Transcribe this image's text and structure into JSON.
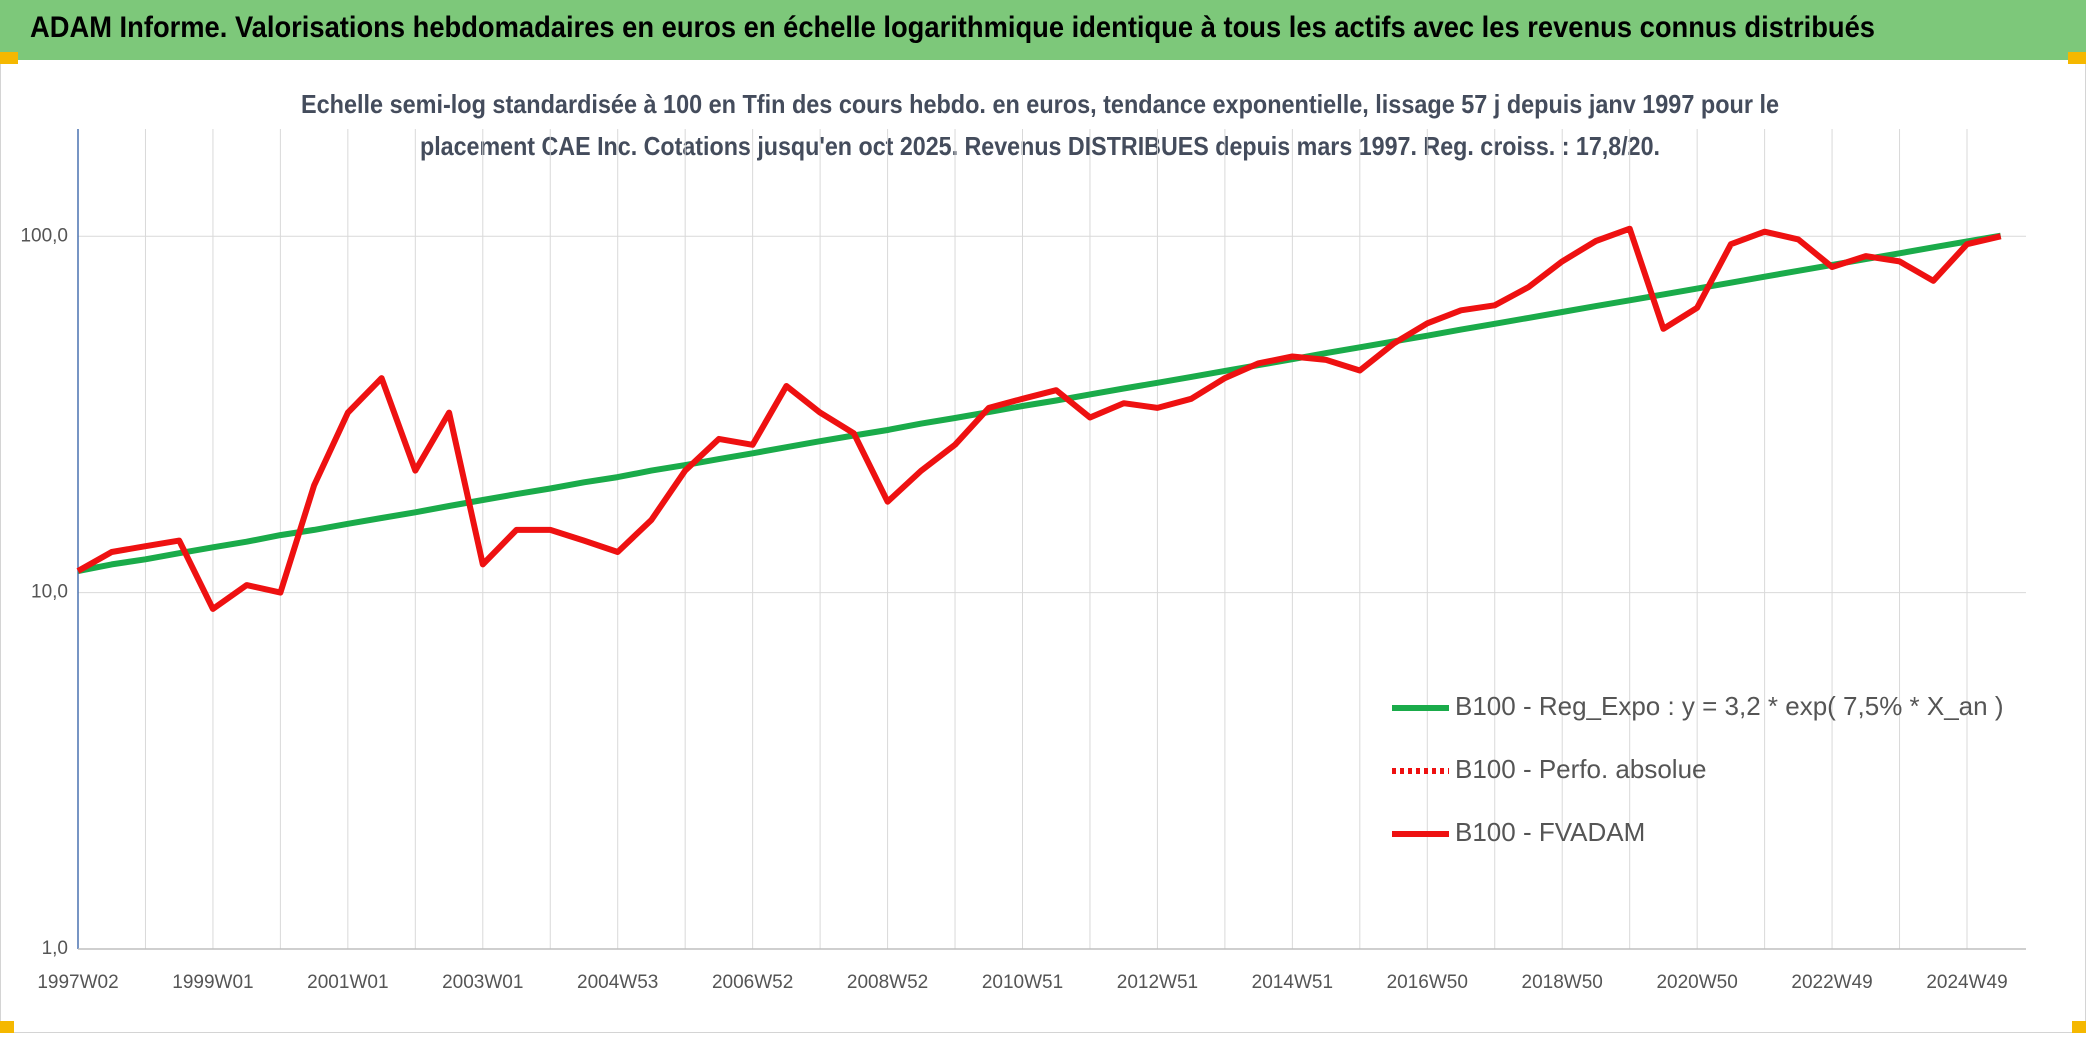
{
  "header": {
    "title": "ADAM Informe. Valorisations hebdomadaires en euros en échelle logarithmique identique à tous les actifs avec les revenus connus distribués"
  },
  "chart_data": {
    "type": "line",
    "subtitle": [
      "Echelle semi-log standardisée à 100 en Tfin des cours hebdo. en euros, tendance exponentielle, lissage 57 j depuis janv 1997 pour le",
      "placement CAE Inc. Cotations jusqu'en oct 2025. Revenus DISTRIBUES depuis mars 1997. Reg. croiss. : 17,8/20."
    ],
    "log_scale": true,
    "grid": true,
    "legend": "lower right",
    "ylim": [
      1,
      200
    ],
    "yticks": [
      {
        "value": 1,
        "label": "1,0"
      },
      {
        "value": 10,
        "label": "10,0"
      },
      {
        "value": 100,
        "label": "100,0"
      }
    ],
    "categories": [
      "1997W02",
      null,
      null,
      null,
      "1999W01",
      null,
      null,
      null,
      "2001W01",
      null,
      null,
      null,
      "2003W01",
      null,
      null,
      null,
      "2004W53",
      null,
      null,
      null,
      "2006W52",
      null,
      null,
      null,
      "2008W52",
      null,
      null,
      null,
      "2010W51",
      null,
      null,
      null,
      "2012W51",
      null,
      null,
      null,
      "2014W51",
      null,
      null,
      null,
      "2016W50",
      null,
      null,
      null,
      "2018W50",
      null,
      null,
      null,
      "2020W50",
      null,
      null,
      null,
      "2022W49",
      null,
      null,
      null,
      "2024W49",
      null
    ],
    "series": [
      {
        "name": "B100 - Reg_Expo : y = 3,2 * exp( 7,5% *  X_an )",
        "color": "#1aab4a",
        "dash": "solid",
        "values": [
          11.5,
          12.0,
          12.4,
          12.9,
          13.4,
          13.9,
          14.5,
          15.0,
          15.6,
          16.2,
          16.8,
          17.5,
          18.2,
          18.9,
          19.6,
          20.4,
          21.1,
          22.0,
          22.8,
          23.7,
          24.6,
          25.6,
          26.6,
          27.6,
          28.6,
          29.8,
          30.9,
          32.1,
          33.4,
          34.6,
          36.0,
          37.4,
          38.8,
          40.3,
          41.9,
          43.5,
          45.2,
          47.0,
          48.8,
          50.7,
          52.6,
          54.7,
          56.8,
          59.0,
          61.3,
          63.7,
          66.1,
          68.7,
          71.3,
          74.1,
          77.0,
          80.0,
          83.1,
          86.3,
          89.6,
          93.1,
          96.7,
          100.4
        ]
      },
      {
        "name": "B100 - Perfo. absolue",
        "color": "#ee1111",
        "dash": "dotted"
      },
      {
        "name": "B100 - FVADAM",
        "color": "#ee1111",
        "dash": "solid",
        "values": [
          11.5,
          13,
          13.5,
          14,
          9,
          10.5,
          10,
          20,
          32,
          40,
          22,
          32,
          12,
          15,
          15,
          14,
          13,
          16,
          22,
          27,
          26,
          38,
          32,
          28,
          18,
          22,
          26,
          33,
          35,
          37,
          31,
          34,
          33,
          35,
          40,
          44,
          46,
          45,
          42,
          50,
          57,
          62,
          64,
          72,
          85,
          97,
          105,
          55,
          63,
          95,
          103,
          98,
          82,
          88,
          85,
          75,
          95,
          100
        ]
      }
    ]
  }
}
